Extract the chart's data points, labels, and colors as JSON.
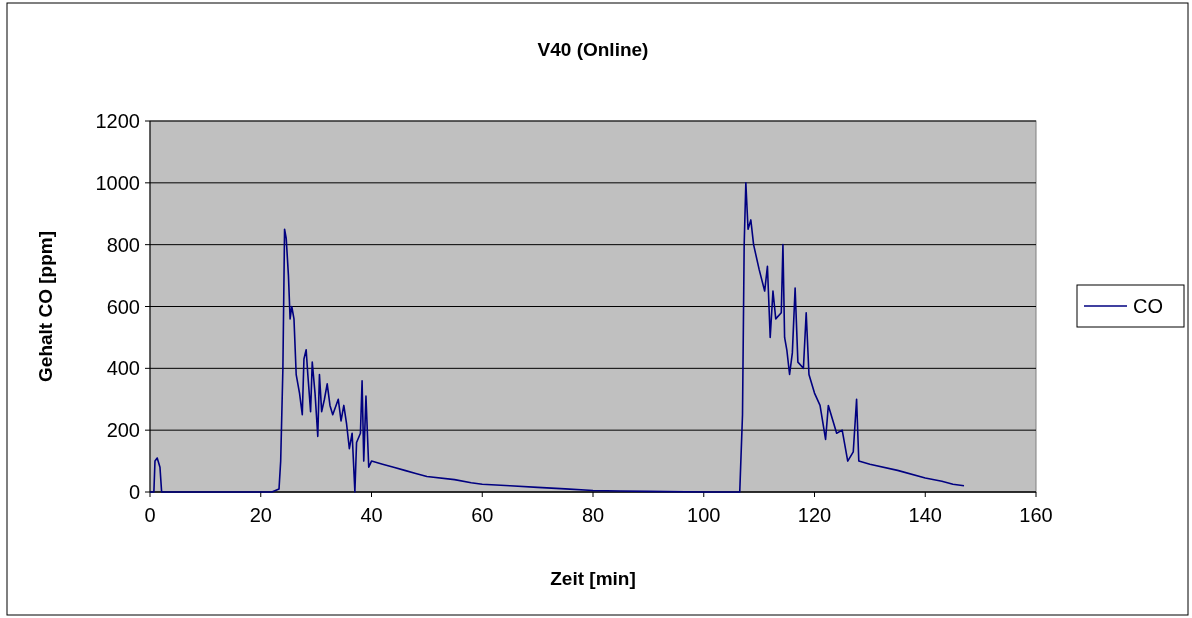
{
  "chart_data": {
    "type": "line",
    "title": "V40 (Online)",
    "xlabel": "Zeit [min]",
    "ylabel": "Gehalt CO [ppm]",
    "xlim": [
      0,
      160
    ],
    "xticks": [
      0,
      20,
      40,
      60,
      80,
      100,
      120,
      140,
      160
    ],
    "ylim": [
      0,
      1200
    ],
    "yticks": [
      0,
      200,
      400,
      600,
      800,
      1000,
      1200
    ],
    "grid": "y",
    "legend": "right",
    "marker": "none",
    "line_style": "solid",
    "series": [
      {
        "name": "CO",
        "color": "#000080",
        "x": [
          0,
          0.7,
          0.9,
          1.3,
          1.8,
          2.1,
          2.3,
          5,
          10,
          15,
          20,
          22,
          23.3,
          23.6,
          24,
          24.3,
          24.6,
          25,
          25.3,
          25.6,
          26,
          26.4,
          27,
          27.5,
          27.8,
          28.2,
          28.5,
          29,
          29.3,
          29.8,
          30.3,
          30.6,
          31,
          31.5,
          32,
          32.5,
          33,
          34,
          34.5,
          35,
          35.5,
          36,
          36.5,
          37,
          37.3,
          38,
          38.3,
          38.6,
          39,
          39.5,
          40,
          42,
          44,
          46,
          48,
          50,
          55,
          58,
          60,
          65,
          70,
          75,
          80,
          85,
          90,
          100,
          106.5,
          107,
          107.3,
          107.6,
          108,
          108.5,
          109,
          110,
          111,
          111.5,
          112,
          112.5,
          113,
          114,
          114.3,
          114.6,
          115,
          115.5,
          116,
          116.5,
          117,
          118,
          118.5,
          119,
          120,
          121,
          122,
          122.5,
          123,
          124,
          125,
          126,
          127,
          127.6,
          128,
          130,
          135,
          140,
          143,
          145,
          147
        ],
        "values": [
          0,
          0,
          100,
          110,
          80,
          0,
          0,
          0,
          0,
          0,
          0,
          0,
          10,
          100,
          400,
          850,
          820,
          700,
          560,
          600,
          560,
          380,
          320,
          250,
          430,
          460,
          380,
          260,
          420,
          320,
          180,
          380,
          260,
          300,
          350,
          280,
          250,
          300,
          230,
          280,
          220,
          140,
          190,
          0,
          160,
          190,
          360,
          100,
          310,
          80,
          100,
          90,
          80,
          70,
          60,
          50,
          40,
          30,
          25,
          20,
          15,
          10,
          5,
          3,
          2,
          0,
          0,
          250,
          800,
          1000,
          850,
          880,
          800,
          720,
          650,
          730,
          500,
          650,
          560,
          580,
          800,
          500,
          460,
          380,
          450,
          660,
          420,
          400,
          580,
          380,
          320,
          280,
          170,
          280,
          250,
          190,
          200,
          100,
          130,
          300,
          100,
          90,
          70,
          45,
          35,
          25,
          20
        ]
      }
    ]
  }
}
